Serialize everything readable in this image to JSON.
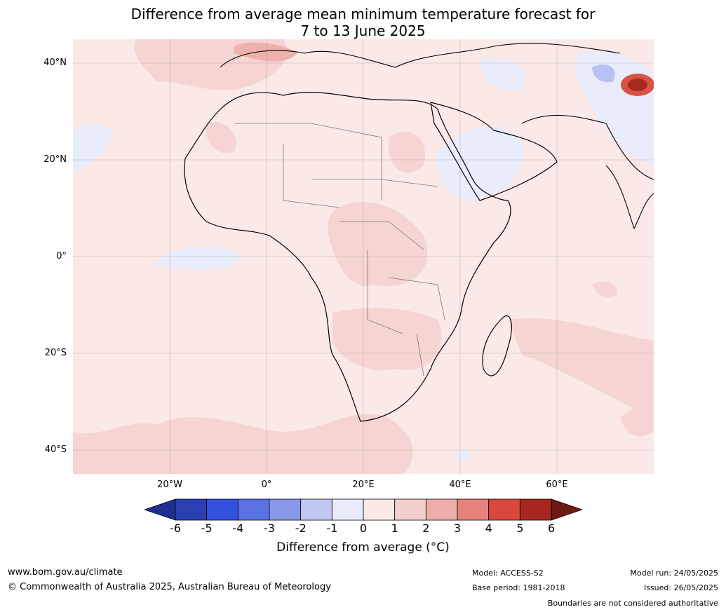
{
  "title": {
    "line1": "Difference from average mean minimum temperature forecast for",
    "line2": "7 to 13 June 2025"
  },
  "map": {
    "region": "Africa and Middle East",
    "lat_labels": [
      "40°N",
      "20°N",
      "0°",
      "20°S",
      "40°S"
    ],
    "lon_labels": [
      "20°W",
      "0°",
      "20°E",
      "40°E",
      "60°E"
    ],
    "colors": {
      "very_slight_warm": "#fbe9e7",
      "slight_warm": "#f5d4d1",
      "warm": "#eeb1ac",
      "hot": "#d95243",
      "very_hot": "#a8291f",
      "slight_cool": "#e8ecfb",
      "cool": "#b8c2f0"
    }
  },
  "colorbar": {
    "ticks": [
      "-6",
      "-5",
      "-4",
      "-3",
      "-2",
      "-1",
      "0",
      "1",
      "2",
      "3",
      "4",
      "5",
      "6"
    ],
    "colors": [
      "#1f2f8f",
      "#2a40b2",
      "#3351df",
      "#5b72e3",
      "#8898e8",
      "#c0c8f2",
      "#eaecfb",
      "#fbe9e7",
      "#f4d0cd",
      "#eeada8",
      "#e6827c",
      "#d9483c",
      "#a8281f",
      "#6b1a14"
    ],
    "label": "Difference from average ($^\\circ$C)",
    "label_display": "Difference from average (°C)"
  },
  "footer": {
    "url": "www.bom.gov.au/climate",
    "copyright": "© Commonwealth of Australia 2025, Australian Bureau of Meteorology",
    "model": "Model: ACCESS-S2",
    "base_period": "Base period: 1981-2018",
    "model_run": "Model run: 24/05/2025",
    "issued": "Issued: 26/05/2025",
    "disclaimer": "Boundaries are not considered authoritative"
  }
}
